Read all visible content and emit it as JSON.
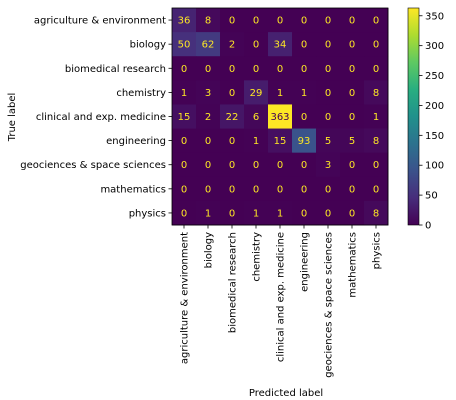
{
  "chart_data": {
    "type": "heatmap",
    "xlabel": "Predicted label",
    "ylabel": "True label",
    "categories": [
      "agriculture & environment",
      "biology",
      "biomedical research",
      "chemistry",
      "clinical and exp. medicine",
      "engineering",
      "geociences & space sciences",
      "mathematics",
      "physics"
    ],
    "matrix": [
      [
        36,
        8,
        0,
        0,
        0,
        0,
        0,
        0,
        0
      ],
      [
        50,
        62,
        2,
        0,
        34,
        0,
        0,
        0,
        0
      ],
      [
        0,
        0,
        0,
        0,
        0,
        0,
        0,
        0,
        0
      ],
      [
        1,
        3,
        0,
        29,
        1,
        1,
        0,
        0,
        8
      ],
      [
        15,
        2,
        22,
        6,
        363,
        0,
        0,
        0,
        1
      ],
      [
        0,
        0,
        0,
        1,
        15,
        93,
        5,
        5,
        8
      ],
      [
        0,
        0,
        0,
        0,
        0,
        0,
        3,
        0,
        0
      ],
      [
        0,
        0,
        0,
        0,
        0,
        0,
        0,
        0,
        0
      ],
      [
        0,
        1,
        0,
        1,
        1,
        0,
        0,
        0,
        8
      ]
    ],
    "colorbar": {
      "range": [
        0,
        363
      ],
      "ticks": [
        "0",
        "50",
        "100",
        "150",
        "200",
        "250",
        "300",
        "350"
      ],
      "colormap": "viridis"
    }
  }
}
